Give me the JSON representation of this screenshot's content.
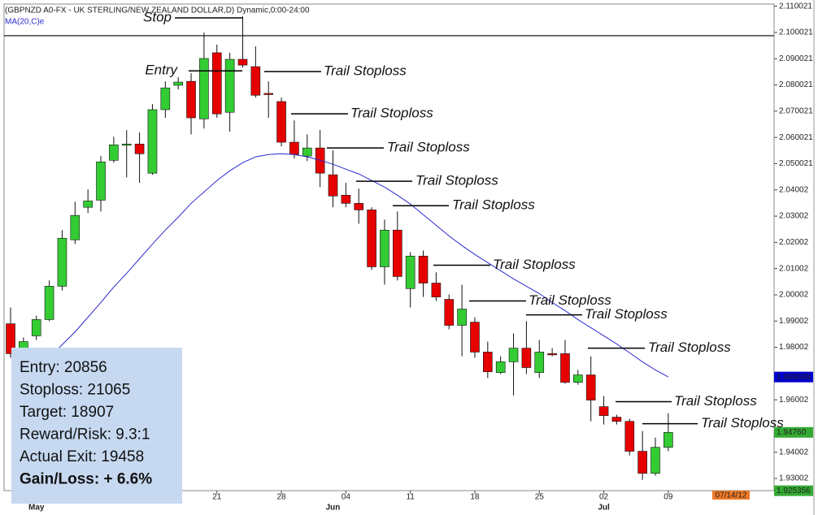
{
  "chart_data": {
    "type": "candlestick",
    "title": "(GBPNZD A0-FX - UK STERLING/NEW ZEALAND DOLLAR,D) Dynamic,0:00-24:00",
    "categories": [
      null,
      null,
      null,
      null,
      null,
      null,
      null,
      null,
      null,
      null,
      null,
      null,
      null,
      null,
      null,
      null,
      "21",
      null,
      null,
      null,
      null,
      "28",
      null,
      null,
      null,
      null,
      "04",
      null,
      null,
      null,
      null,
      "11",
      null,
      null,
      null,
      null,
      "18",
      null,
      null,
      null,
      null,
      "25",
      null,
      null,
      null,
      null,
      "02",
      null,
      null,
      null,
      null,
      "09"
    ],
    "months": [
      null,
      null,
      "May",
      null,
      null,
      null,
      null,
      null,
      null,
      null,
      null,
      null,
      null,
      null,
      null,
      null,
      null,
      null,
      null,
      null,
      null,
      null,
      null,
      null,
      null,
      "Jun",
      null,
      null,
      null,
      null,
      null,
      null,
      null,
      null,
      null,
      null,
      null,
      null,
      null,
      null,
      null,
      null,
      null,
      null,
      null,
      null,
      "Jul",
      null,
      null,
      null,
      null,
      null
    ],
    "open": [
      1.989,
      1.9776,
      1.9844,
      1.9906,
      2.0033,
      2.021,
      2.0334,
      2.0361,
      2.0513,
      2.0572,
      2.0575,
      2.0464,
      2.0706,
      2.0799,
      2.0814,
      2.0671,
      2.0923,
      2.0696,
      2.0898,
      2.087,
      2.0768,
      2.0737,
      2.0582,
      2.0529,
      2.056,
      2.0458,
      2.038,
      2.0349,
      2.0324,
      2.0107,
      2.0247,
      2.0024,
      2.0148,
      2.0045,
      1.9983,
      1.9884,
      1.9896,
      1.9782,
      1.9704,
      1.9745,
      1.9797,
      1.9704,
      1.9776,
      1.9776,
      1.9667,
      1.9695,
      1.9574,
      1.9534,
      1.9518,
      1.9404,
      1.932,
      1.9419
    ],
    "high": [
      1.9952,
      1.9838,
      1.9921,
      2.0055,
      2.0247,
      2.0355,
      2.0402,
      2.0529,
      2.0603,
      2.0628,
      2.0619,
      2.0727,
      2.0814,
      2.083,
      2.0845,
      2.1,
      2.0954,
      2.0923,
      2.1062,
      2.0947,
      2.0814,
      2.0752,
      2.0665,
      2.0612,
      2.0628,
      2.0551,
      2.0427,
      2.0405,
      2.0334,
      2.0287,
      2.0318,
      2.0163,
      2.0169,
      2.0086,
      2.0002,
      2.0039,
      1.9915,
      1.9822,
      1.9766,
      1.9853,
      1.99,
      1.9828,
      1.9797,
      1.9828,
      1.9714,
      1.9766,
      1.9614,
      1.9543,
      1.9528,
      1.9481,
      1.9456,
      1.9549
    ],
    "low": [
      1.976,
      1.976,
      1.9828,
      1.99,
      2.0017,
      2.0194,
      2.0312,
      2.0318,
      2.0504,
      2.0448,
      2.0427,
      2.0458,
      2.0675,
      2.0783,
      2.0612,
      2.0634,
      2.0675,
      2.0622,
      2.0867,
      2.0752,
      2.0675,
      2.0566,
      2.052,
      2.051,
      2.0411,
      2.0334,
      2.0334,
      2.0271,
      2.0095,
      2.0039,
      2.0055,
      1.9952,
      1.9992,
      1.9977,
      1.9869,
      1.9766,
      1.976,
      1.9683,
      1.9698,
      1.9617,
      1.9698,
      1.9683,
      1.9766,
      1.9661,
      1.9658,
      1.9518,
      1.9506,
      1.9506,
      1.9388,
      1.9295,
      1.9311,
      1.9404
    ],
    "close": [
      1.9776,
      1.9822,
      1.9906,
      2.0033,
      2.0216,
      2.0303,
      2.0358,
      2.0507,
      2.0572,
      2.0575,
      2.0538,
      2.0706,
      2.0789,
      2.0811,
      2.0675,
      2.0901,
      2.069,
      2.0898,
      2.0876,
      2.0761,
      2.0764,
      2.0582,
      2.0535,
      2.056,
      2.0464,
      2.0377,
      2.0349,
      2.0324,
      2.0107,
      2.0247,
      2.007,
      2.0148,
      2.0045,
      1.9992,
      1.9884,
      1.9946,
      1.9782,
      1.9707,
      1.9745,
      1.9797,
      1.9723,
      1.9782,
      1.9772,
      1.9667,
      1.9695,
      1.9599,
      1.954,
      1.9518,
      1.9404,
      1.932,
      1.9419,
      1.9476
    ],
    "up_color": "#33cc33",
    "down_color": "#e60000",
    "series": [
      {
        "name": "MA(20,C)e",
        "color": "#2b2bd0",
        "values": [
          null,
          null,
          null,
          1.976,
          1.981,
          1.9859,
          1.9915,
          1.9971,
          2.003,
          2.0082,
          2.0138,
          2.0194,
          2.0247,
          2.0296,
          2.0349,
          2.0392,
          2.0436,
          2.0473,
          2.0504,
          2.0526,
          2.0535,
          2.0538,
          2.0535,
          2.0526,
          2.0513,
          2.0498,
          2.0479,
          2.0461,
          2.0436,
          2.0411,
          2.038,
          2.0346,
          2.0306,
          2.0265,
          2.0225,
          2.0188,
          2.0154,
          2.0123,
          2.0092,
          2.0061,
          2.0033,
          2.0005,
          1.9971,
          1.994,
          1.9906,
          1.9875,
          1.9844,
          1.9813,
          1.9779,
          1.9745,
          1.9714,
          1.9687
        ]
      }
    ],
    "ylim": [
      1.924,
      2.112
    ],
    "yticks": [
      2.110021,
      2.100021,
      2.090021,
      2.080021,
      2.070021,
      2.060021,
      2.050021,
      2.04002,
      2.03002,
      2.02002,
      2.01002,
      2.00002,
      1.99002,
      1.98002,
      1.96002,
      1.94002,
      1.93002
    ],
    "reference_line": 2.0988,
    "price_labels": [
      {
        "value": 1.968699,
        "label": "1.968699",
        "color": "#0000cc"
      },
      {
        "value": 1.9476,
        "label": "1.94760",
        "color": "#33aa33"
      },
      {
        "value": 1.925356,
        "label": "1.925356",
        "color": "#33aa33"
      }
    ],
    "date_label": "07/14/12",
    "annotations": [
      {
        "text": "Stop",
        "level": 2.1056
      },
      {
        "text": "Entry",
        "level": 2.0854
      },
      {
        "text": "Trail Stoploss",
        "level": 2.0851
      },
      {
        "text": "Trail Stoploss",
        "level": 2.069
      },
      {
        "text": "Trail Stoploss",
        "level": 2.056
      },
      {
        "text": "Trail Stoploss",
        "level": 2.0433
      },
      {
        "text": "Trail Stoploss",
        "level": 2.034
      },
      {
        "text": "Trail Stoploss",
        "level": 2.0113
      },
      {
        "text": "Trail Stoploss",
        "level": 1.9977
      },
      {
        "text": "Trail Stoploss",
        "level": 1.9924
      },
      {
        "text": "Trail Stoploss",
        "level": 1.9797
      },
      {
        "text": "Trail Stoploss",
        "level": 1.9593
      },
      {
        "text": "Trail Stoploss",
        "level": 1.9509
      }
    ]
  },
  "info_box": [
    "Entry: 20856",
    "Stoploss: 21065",
    "Target: 18907",
    "Reward/Risk: 9.3:1",
    "Actual Exit: 19458",
    "Gain/Loss: + 6.6%"
  ]
}
